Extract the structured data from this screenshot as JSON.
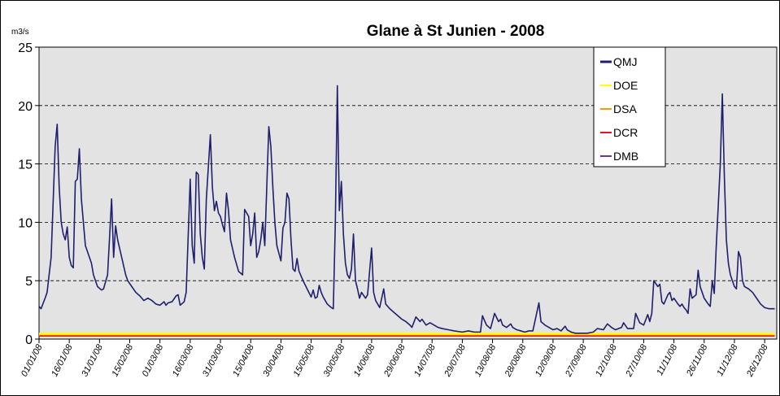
{
  "chart_data": {
    "type": "line",
    "title": "Glane à St Junien - 2008",
    "y_label": "m3/s",
    "xlim": [
      "01/01/08",
      "31/12/08"
    ],
    "xticks": [
      "01/01/08",
      "16/01/08",
      "31/01/08",
      "15/02/08",
      "01/03/08",
      "16/03/08",
      "31/03/08",
      "15/04/08",
      "30/04/08",
      "15/05/08",
      "30/05/08",
      "14/06/08",
      "29/06/08",
      "14/07/08",
      "29/07/08",
      "13/08/08",
      "28/08/08",
      "12/09/08",
      "27/09/08",
      "12/10/08",
      "27/10/08",
      "11/11/08",
      "26/11/08",
      "11/12/08",
      "26/12/08"
    ],
    "ylim": [
      0,
      25
    ],
    "yticks": [
      0,
      5,
      10,
      15,
      20,
      25
    ],
    "grid": true,
    "legend": "upper right",
    "series": [
      {
        "name": "QMJ",
        "color": "#1f1f6e",
        "x": [
          "01/01/08",
          "02/01/08",
          "04/01/08",
          "05/01/08",
          "07/01/08",
          "09/01/08",
          "10/01/08",
          "11/01/08",
          "12/01/08",
          "13/01/08",
          "14/01/08",
          "15/01/08",
          "16/01/08",
          "17/01/08",
          "18/01/08",
          "19/01/08",
          "20/01/08",
          "21/01/08",
          "22/01/08",
          "23/01/08",
          "24/01/08",
          "25/01/08",
          "27/01/08",
          "28/01/08",
          "29/01/08",
          "30/01/08",
          "01/02/08",
          "02/02/08",
          "04/02/08",
          "06/02/08",
          "07/02/08",
          "08/02/08",
          "09/02/08",
          "11/02/08",
          "13/02/08",
          "14/02/08",
          "16/02/08",
          "18/02/08",
          "20/02/08",
          "22/02/08",
          "24/02/08",
          "26/02/08",
          "28/02/08",
          "01/03/08",
          "03/03/08",
          "04/03/08",
          "05/03/08",
          "07/03/08",
          "09/03/08",
          "10/03/08",
          "11/03/08",
          "13/03/08",
          "14/03/08",
          "16/03/08",
          "17/03/08",
          "18/03/08",
          "19/03/08",
          "20/03/08",
          "21/03/08",
          "22/03/08",
          "23/03/08",
          "24/03/08",
          "26/03/08",
          "27/03/08",
          "28/03/08",
          "29/03/08",
          "30/03/08",
          "31/03/08",
          "01/04/08",
          "02/04/08",
          "03/04/08",
          "04/04/08",
          "05/04/08",
          "07/04/08",
          "09/04/08",
          "11/04/08",
          "12/04/08",
          "13/04/08",
          "14/04/08",
          "15/04/08",
          "16/04/08",
          "17/04/08",
          "18/04/08",
          "19/04/08",
          "20/04/08",
          "21/04/08",
          "22/04/08",
          "24/04/08",
          "25/04/08",
          "26/04/08",
          "27/04/08",
          "28/04/08",
          "30/04/08",
          "01/05/08",
          "02/05/08",
          "03/05/08",
          "04/05/08",
          "05/05/08",
          "06/05/08",
          "07/05/08",
          "08/05/08",
          "09/05/08",
          "11/05/08",
          "13/05/08",
          "15/05/08",
          "16/05/08",
          "17/05/08",
          "18/05/08",
          "19/05/08",
          "20/05/08",
          "21/05/08",
          "23/05/08",
          "25/05/08",
          "26/05/08",
          "27/05/08",
          "28/05/08",
          "29/05/08",
          "30/05/08",
          "31/05/08",
          "01/06/08",
          "02/06/08",
          "03/06/08",
          "04/06/08",
          "05/06/08",
          "06/06/08",
          "07/06/08",
          "08/06/08",
          "09/06/08",
          "11/06/08",
          "12/06/08",
          "14/06/08",
          "15/06/08",
          "16/06/08",
          "17/06/08",
          "18/06/08",
          "20/06/08",
          "21/06/08",
          "23/06/08",
          "25/06/08",
          "27/06/08",
          "29/06/08",
          "01/07/08",
          "03/07/08",
          "04/07/08",
          "06/07/08",
          "08/07/08",
          "09/07/08",
          "11/07/08",
          "13/07/08",
          "15/07/08",
          "17/07/08",
          "19/07/08",
          "22/07/08",
          "25/07/08",
          "29/07/08",
          "01/08/08",
          "04/08/08",
          "07/08/08",
          "08/08/08",
          "10/08/08",
          "12/08/08",
          "14/08/08",
          "16/08/08",
          "17/08/08",
          "18/08/08",
          "20/08/08",
          "22/08/08",
          "23/08/08",
          "25/08/08",
          "27/08/08",
          "29/08/08",
          "31/08/08",
          "02/09/08",
          "05/09/08",
          "06/09/08",
          "08/09/08",
          "10/09/08",
          "12/09/08",
          "14/09/08",
          "16/09/08",
          "18/09/08",
          "19/09/08",
          "21/09/08",
          "23/09/08",
          "29/09/08",
          "02/10/08",
          "04/10/08",
          "07/10/08",
          "09/10/08",
          "11/10/08",
          "13/10/08",
          "16/10/08",
          "17/10/08",
          "19/10/08",
          "22/10/08",
          "23/10/08",
          "25/10/08",
          "27/10/08",
          "29/10/08",
          "30/10/08",
          "31/10/08",
          "01/11/08",
          "03/11/08",
          "04/11/08",
          "05/11/08",
          "06/11/08",
          "08/11/08",
          "09/11/08",
          "10/11/08",
          "11/11/08",
          "13/11/08",
          "14/11/08",
          "15/11/08",
          "16/11/08",
          "17/11/08",
          "18/11/08",
          "19/11/08",
          "20/11/08",
          "22/11/08",
          "23/11/08",
          "24/11/08",
          "25/11/08",
          "26/11/08",
          "28/11/08",
          "29/11/08",
          "30/11/08",
          "01/12/08",
          "02/12/08",
          "04/12/08",
          "05/12/08",
          "06/12/08",
          "07/12/08",
          "08/12/08",
          "09/12/08",
          "10/12/08",
          "11/12/08",
          "12/12/08",
          "13/12/08",
          "14/12/08",
          "15/12/08",
          "16/12/08",
          "18/12/08",
          "20/12/08",
          "22/12/08",
          "24/12/08",
          "26/12/08",
          "28/12/08",
          "31/12/08"
        ],
        "values": [
          2.8,
          2.6,
          3.5,
          4,
          7,
          16.5,
          18.4,
          13,
          10,
          9,
          8.5,
          9.6,
          7,
          6.3,
          6.1,
          13.5,
          13.7,
          16.3,
          12,
          10,
          8,
          7.5,
          6.5,
          5.5,
          5,
          4.5,
          4.2,
          4.3,
          5.5,
          12,
          7,
          9.7,
          8.5,
          7,
          5.5,
          5,
          4.5,
          4,
          3.7,
          3.3,
          3.5,
          3.3,
          3,
          2.9,
          3.2,
          2.9,
          3.1,
          3.2,
          3.7,
          3.8,
          2.9,
          3.2,
          4,
          13.7,
          8,
          6.5,
          14.3,
          14.1,
          9,
          7,
          6,
          12,
          17.5,
          13,
          11,
          11.8,
          10.8,
          10.5,
          9.8,
          9.2,
          12.5,
          11,
          8.5,
          7,
          5.8,
          5.5,
          11.1,
          10.8,
          10.5,
          8,
          9,
          10.8,
          7,
          7.5,
          8.5,
          10,
          8,
          18.2,
          16.5,
          13,
          10,
          8,
          6.7,
          9.5,
          10,
          12.5,
          12,
          8.5,
          6,
          5.8,
          6.9,
          5.8,
          5,
          4.3,
          3.6,
          4.2,
          3.5,
          3.6,
          4.6,
          4,
          3.6,
          3,
          2.7,
          2.6,
          10,
          21.7,
          11,
          13.5,
          9,
          6.5,
          5.5,
          5.2,
          6,
          9,
          5,
          4.3,
          3.5,
          4,
          3.5,
          3.8,
          7.8,
          4,
          3.3,
          3,
          2.7,
          4.3,
          3,
          2.6,
          2.3,
          2,
          1.7,
          1.5,
          1.2,
          1,
          1.9,
          1.5,
          1.7,
          1.2,
          1.4,
          1.2,
          1,
          0.9,
          0.8,
          0.7,
          0.6,
          0.7,
          0.6,
          0.6,
          2,
          1.2,
          0.9,
          2.2,
          1.5,
          1.7,
          1.2,
          1,
          1.3,
          1,
          0.8,
          0.7,
          0.6,
          0.7,
          0.7,
          3.1,
          1.5,
          1.2,
          1,
          0.8,
          0.9,
          0.7,
          1.1,
          0.8,
          0.6,
          0.5,
          0.5,
          0.6,
          0.9,
          0.8,
          1.3,
          1,
          0.8,
          1,
          1.4,
          0.9,
          0.9,
          2.2,
          1.4,
          1.2,
          2.1,
          1.5,
          2.2,
          5,
          4.5,
          4.7,
          3.2,
          3,
          3.8,
          4,
          3.3,
          3.5,
          3,
          2.8,
          3,
          2.7,
          2.5,
          2.2,
          4.3,
          3.5,
          3.8,
          5.9,
          4.5,
          4,
          3.5,
          3,
          2.8,
          5,
          3.9,
          8,
          15,
          21,
          14,
          8.5,
          6.5,
          5.5,
          5,
          4.5,
          4.3,
          7.5,
          7,
          5,
          4.5,
          4.3,
          4,
          3.5,
          3,
          2.7,
          2.6,
          2.6
        ]
      },
      {
        "name": "DOE",
        "color": "#ffff00",
        "x": [
          "01/01/08",
          "31/12/08"
        ],
        "values": [
          0.45,
          0.45
        ]
      },
      {
        "name": "DSA",
        "color": "#ff9900",
        "x": [
          "01/01/08",
          "31/12/08"
        ],
        "values": [
          0.4,
          0.4
        ]
      },
      {
        "name": "DCR",
        "color": "#e8102a",
        "x": [
          "01/01/08",
          "31/12/08"
        ],
        "values": [
          0.3,
          0.3
        ]
      },
      {
        "name": "DMB",
        "color": "#7030a0",
        "x": [
          "01/01/08",
          "31/12/08"
        ],
        "values": [
          0.35,
          0.35
        ]
      }
    ]
  }
}
